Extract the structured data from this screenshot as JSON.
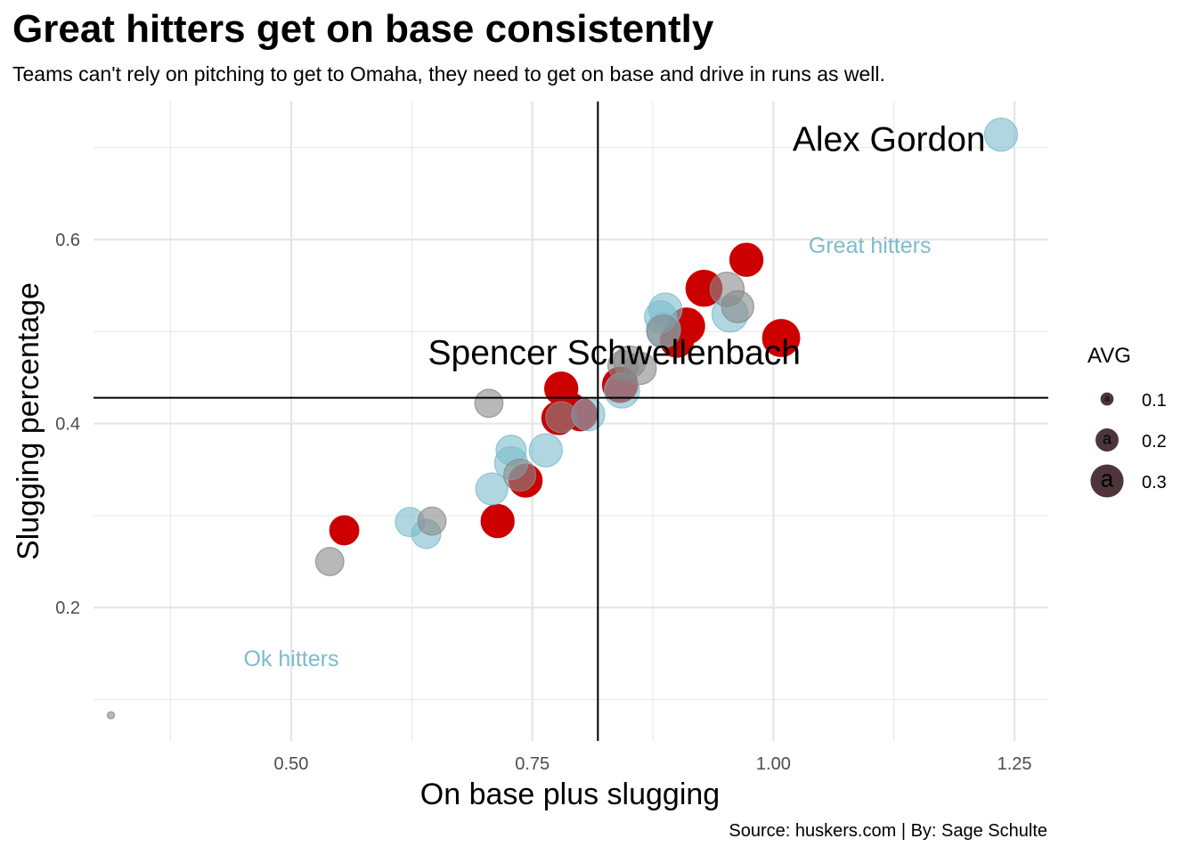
{
  "title": "Great hitters get on base consistently",
  "subtitle": "Teams can't rely on pitching to get to Omaha, they need to get on base and drive in runs as well.",
  "caption": "Source: huskers.com | By: Sage Schulte",
  "colors": {
    "red": "#cc0000",
    "blue": "#7bbccd",
    "gray": "#888888",
    "line": "#000000",
    "annotation": "#0000ff",
    "grid": "#e6e6e6",
    "legend_fill": "#3a1f26"
  },
  "chart_data": {
    "type": "scatter",
    "xlabel": "On base plus slugging",
    "ylabel": "Slugging percentage",
    "xlim": [
      0.295,
      1.285
    ],
    "ylim": [
      0.055,
      0.75
    ],
    "x_ticks": [
      0.5,
      0.75,
      1.0,
      1.25
    ],
    "x_tick_labels": [
      "0.50",
      "0.75",
      "1.00",
      "1.25"
    ],
    "y_ticks": [
      0.2,
      0.4,
      0.6
    ],
    "y_tick_labels": [
      "0.2",
      "0.4",
      "0.6"
    ],
    "grid": true,
    "reference_lines": {
      "vline_x": 0.818,
      "hline_y": 0.428
    },
    "legend": {
      "title": "AVG",
      "position": "right",
      "glyph": "a",
      "entries": [
        {
          "label": "0.1",
          "value": 0.1
        },
        {
          "label": "0.2",
          "value": 0.2
        },
        {
          "label": "0.3",
          "value": 0.3
        }
      ]
    },
    "annotations": [
      {
        "text": "Great hitters",
        "x": 1.1,
        "y": 0.594,
        "color": "blue"
      },
      {
        "text": "Ok hitters",
        "x": 0.5,
        "y": 0.145,
        "color": "blue"
      }
    ],
    "labels": [
      {
        "text": "Alex Gordon",
        "x": 1.22,
        "y": 0.71,
        "anchor": "end"
      },
      {
        "text": "Spencer Schwellenbach",
        "x": 0.835,
        "y": 0.478,
        "anchor": "middle"
      }
    ],
    "series": [
      {
        "color": "red",
        "points": [
          {
            "x": 0.972,
            "y": 0.578,
            "avg": 0.3
          },
          {
            "x": 0.928,
            "y": 0.547,
            "avg": 0.33
          },
          {
            "x": 0.91,
            "y": 0.506,
            "avg": 0.33
          },
          {
            "x": 0.9,
            "y": 0.49,
            "avg": 0.3
          },
          {
            "x": 1.008,
            "y": 0.493,
            "avg": 0.34
          },
          {
            "x": 0.841,
            "y": 0.442,
            "avg": 0.32
          },
          {
            "x": 0.78,
            "y": 0.438,
            "avg": 0.3
          },
          {
            "x": 0.79,
            "y": 0.415,
            "avg": 0.3
          },
          {
            "x": 0.8,
            "y": 0.41,
            "avg": 0.3
          },
          {
            "x": 0.777,
            "y": 0.406,
            "avg": 0.3
          },
          {
            "x": 0.743,
            "y": 0.338,
            "avg": 0.3
          },
          {
            "x": 0.714,
            "y": 0.294,
            "avg": 0.3
          },
          {
            "x": 0.555,
            "y": 0.284,
            "avg": 0.26
          }
        ]
      },
      {
        "color": "blue",
        "points": [
          {
            "x": 1.236,
            "y": 0.714,
            "avg": 0.3
          },
          {
            "x": 0.888,
            "y": 0.524,
            "avg": 0.3
          },
          {
            "x": 0.883,
            "y": 0.516,
            "avg": 0.29
          },
          {
            "x": 0.955,
            "y": 0.519,
            "avg": 0.33
          },
          {
            "x": 0.886,
            "y": 0.502,
            "avg": 0.31
          },
          {
            "x": 0.843,
            "y": 0.436,
            "avg": 0.32
          },
          {
            "x": 0.808,
            "y": 0.41,
            "avg": 0.3
          },
          {
            "x": 0.764,
            "y": 0.371,
            "avg": 0.3
          },
          {
            "x": 0.728,
            "y": 0.371,
            "avg": 0.27
          },
          {
            "x": 0.728,
            "y": 0.357,
            "avg": 0.3
          },
          {
            "x": 0.708,
            "y": 0.329,
            "avg": 0.29
          },
          {
            "x": 0.623,
            "y": 0.293,
            "avg": 0.26
          },
          {
            "x": 0.64,
            "y": 0.28,
            "avg": 0.26
          }
        ]
      },
      {
        "color": "gray",
        "points": [
          {
            "x": 0.952,
            "y": 0.546,
            "avg": 0.31
          },
          {
            "x": 0.963,
            "y": 0.527,
            "avg": 0.29
          },
          {
            "x": 0.886,
            "y": 0.5,
            "avg": 0.3
          },
          {
            "x": 0.851,
            "y": 0.467,
            "avg": 0.29
          },
          {
            "x": 0.862,
            "y": 0.46,
            "avg": 0.29
          },
          {
            "x": 0.844,
            "y": 0.463,
            "avg": 0.27
          },
          {
            "x": 0.737,
            "y": 0.344,
            "avg": 0.29
          },
          {
            "x": 0.705,
            "y": 0.422,
            "avg": 0.25
          },
          {
            "x": 0.646,
            "y": 0.294,
            "avg": 0.25
          },
          {
            "x": 0.54,
            "y": 0.25,
            "avg": 0.25
          },
          {
            "x": 0.78,
            "y": 0.407,
            "avg": 0.28
          },
          {
            "x": 0.313,
            "y": 0.083,
            "avg": 0.04
          }
        ]
      }
    ]
  }
}
